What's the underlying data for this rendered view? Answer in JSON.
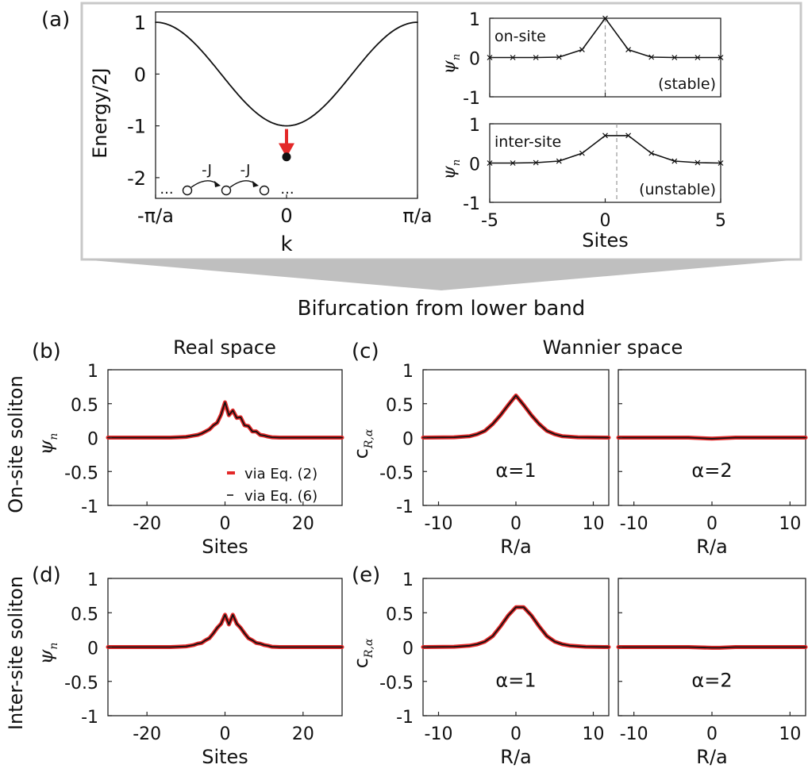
{
  "figure": {
    "panel_labels": [
      "(a)",
      "(b)",
      "(c)",
      "(d)",
      "(e)"
    ],
    "banner": "Bifurcation from lower band",
    "real_space_title": "Real space",
    "wannier_space_title": "Wannier space",
    "row_labels": [
      "On-site soliton",
      "Inter-site soliton"
    ]
  },
  "colors": {
    "curve": "#111111",
    "red": "#e32828",
    "frame": "#c8c8c8",
    "connector": "#bfbfbf"
  },
  "chart_data": [
    {
      "id": "band",
      "type": "line",
      "xlabel": "k",
      "ylabel": "Energy/2J",
      "xticklabels": [
        "-π/a",
        "0",
        "π/a"
      ],
      "ylim": [
        -2.4,
        1.2
      ],
      "yticks": [
        1,
        0,
        -1,
        -2
      ],
      "series": [
        {
          "function": "-cos(k a)",
          "x_range": [
            -3.1416,
            3.1416
          ]
        }
      ],
      "annotations": {
        "arrow": {
          "x": 0,
          "from": -1.0,
          "to": -1.55
        },
        "soliton_point": {
          "x": 0,
          "y": -1.6
        },
        "lattice": {
          "hop_labels": [
            "-J",
            "-J"
          ],
          "ellipsis": "..."
        }
      }
    },
    {
      "id": "onsite_profile",
      "type": "line",
      "label": "on-site",
      "note": "(stable)",
      "ylabel": "ψ_n",
      "xlim": [
        -5,
        5
      ],
      "ylim": [
        -1,
        1
      ],
      "yticks": [
        1,
        0,
        -1
      ],
      "x": [
        -5,
        -4,
        -3,
        -2,
        -1,
        0,
        1,
        2,
        3,
        4,
        5
      ],
      "y": [
        0,
        0,
        0,
        0.01,
        0.2,
        1.0,
        0.2,
        0.01,
        0,
        0,
        0
      ],
      "center_line_x": 0
    },
    {
      "id": "intersite_profile",
      "type": "line",
      "label": "inter-site",
      "note": "(unstable)",
      "ylabel": "ψ_n",
      "xlabel": "Sites",
      "xlim": [
        -5,
        5
      ],
      "ylim": [
        -1,
        1
      ],
      "xticks": [
        -5,
        0,
        5
      ],
      "yticks": [
        1,
        0,
        -1
      ],
      "x": [
        -5,
        -4,
        -3,
        -2,
        -1,
        0,
        1,
        2,
        3,
        4,
        5
      ],
      "y": [
        0,
        0,
        0.01,
        0.05,
        0.25,
        0.7,
        0.7,
        0.25,
        0.05,
        0.01,
        0
      ],
      "center_line_x": 0.5
    },
    {
      "id": "b",
      "type": "line",
      "ylabel": "ψ_n",
      "xlabel": "Sites",
      "xlim": [
        -30,
        30
      ],
      "ylim": [
        -1,
        1
      ],
      "xticks": [
        -20,
        0,
        20
      ],
      "yticks": [
        1,
        0.5,
        0,
        -0.5,
        -1
      ],
      "legend": {
        "position": "inside-bottom-right",
        "entries": [
          "via Eq. (2)",
          "via Eq. (6)"
        ]
      },
      "series": [
        {
          "name": "via Eq. (2)",
          "color": "#e32828",
          "x": [
            -30,
            -14,
            -12,
            -10,
            -9,
            -8,
            -7,
            -6,
            -5,
            -4,
            -3,
            -2,
            -1,
            0,
            1,
            2,
            3,
            4,
            5,
            6,
            7,
            8,
            9,
            10,
            11,
            12,
            14,
            30
          ],
          "y": [
            0,
            0,
            0.005,
            0.01,
            0.02,
            0.03,
            0.04,
            0.06,
            0.09,
            0.12,
            0.18,
            0.22,
            0.34,
            0.52,
            0.33,
            0.4,
            0.29,
            0.3,
            0.18,
            0.17,
            0.09,
            0.09,
            0.04,
            0.03,
            0.015,
            0.005,
            0,
            0
          ]
        },
        {
          "name": "via Eq. (6)",
          "color": "#111111",
          "x": [
            -30,
            -14,
            -12,
            -10,
            -9,
            -8,
            -7,
            -6,
            -5,
            -4,
            -3,
            -2,
            -1,
            0,
            1,
            2,
            3,
            4,
            5,
            6,
            7,
            8,
            9,
            10,
            11,
            12,
            14,
            30
          ],
          "y": [
            0,
            0,
            0.005,
            0.01,
            0.02,
            0.03,
            0.04,
            0.06,
            0.09,
            0.12,
            0.18,
            0.22,
            0.34,
            0.52,
            0.33,
            0.4,
            0.29,
            0.3,
            0.18,
            0.17,
            0.09,
            0.09,
            0.04,
            0.03,
            0.015,
            0.005,
            0,
            0
          ]
        }
      ]
    },
    {
      "id": "c1",
      "type": "line",
      "ylabel": "c_{R,α}",
      "xlabel": "R/a",
      "label": "α=1",
      "xlim": [
        -12,
        12
      ],
      "ylim": [
        -1,
        1
      ],
      "xticks": [
        -10,
        0,
        10
      ],
      "yticks": [
        1,
        0.5,
        0,
        -0.5,
        -1
      ],
      "series": [
        {
          "name": "via Eq. (2)",
          "color": "#e32828",
          "x": [
            -12,
            -8,
            -6,
            -5,
            -4,
            -3,
            -2,
            -1,
            0,
            1,
            2,
            3,
            4,
            5,
            6,
            8,
            12
          ],
          "y": [
            0,
            0.005,
            0.02,
            0.05,
            0.1,
            0.2,
            0.33,
            0.48,
            0.62,
            0.48,
            0.33,
            0.2,
            0.1,
            0.05,
            0.02,
            0.005,
            0
          ]
        },
        {
          "name": "via Eq. (6)",
          "color": "#111111",
          "x": [
            -12,
            -8,
            -6,
            -5,
            -4,
            -3,
            -2,
            -1,
            0,
            1,
            2,
            3,
            4,
            5,
            6,
            8,
            12
          ],
          "y": [
            0,
            0.005,
            0.02,
            0.05,
            0.1,
            0.2,
            0.33,
            0.48,
            0.62,
            0.48,
            0.33,
            0.2,
            0.1,
            0.05,
            0.02,
            0.005,
            0
          ]
        }
      ]
    },
    {
      "id": "c2",
      "type": "line",
      "xlabel": "R/a",
      "label": "α=2",
      "xlim": [
        -12,
        12
      ],
      "ylim": [
        -1,
        1
      ],
      "xticks": [
        -10,
        0,
        10
      ],
      "series": [
        {
          "name": "via Eq. (2)",
          "color": "#e32828",
          "x": [
            -12,
            -3,
            -1,
            0,
            1,
            3,
            12
          ],
          "y": [
            0,
            0,
            -0.01,
            -0.015,
            -0.01,
            0,
            0
          ]
        },
        {
          "name": "via Eq. (6)",
          "color": "#111111",
          "x": [
            -12,
            -3,
            -1,
            0,
            1,
            3,
            12
          ],
          "y": [
            0,
            0,
            -0.01,
            -0.015,
            -0.01,
            0,
            0
          ]
        }
      ]
    },
    {
      "id": "d",
      "type": "line",
      "ylabel": "ψ_n",
      "xlabel": "Sites",
      "xlim": [
        -30,
        30
      ],
      "ylim": [
        -1,
        1
      ],
      "xticks": [
        -20,
        0,
        20
      ],
      "yticks": [
        1,
        0.5,
        0,
        -0.5,
        -1
      ],
      "series": [
        {
          "name": "via Eq. (2)",
          "color": "#e32828",
          "x": [
            -30,
            -14,
            -12,
            -10,
            -9,
            -8,
            -7,
            -6,
            -5,
            -4,
            -3,
            -2,
            -1,
            0,
            1,
            2,
            3,
            4,
            5,
            6,
            7,
            8,
            9,
            10,
            11,
            12,
            14,
            30
          ],
          "y": [
            0,
            0,
            0.005,
            0.01,
            0.02,
            0.03,
            0.05,
            0.06,
            0.1,
            0.13,
            0.2,
            0.28,
            0.34,
            0.47,
            0.33,
            0.47,
            0.34,
            0.28,
            0.2,
            0.13,
            0.1,
            0.06,
            0.05,
            0.03,
            0.02,
            0.005,
            0,
            0
          ]
        },
        {
          "name": "via Eq. (6)",
          "color": "#111111",
          "x": [
            -30,
            -14,
            -12,
            -10,
            -9,
            -8,
            -7,
            -6,
            -5,
            -4,
            -3,
            -2,
            -1,
            0,
            1,
            2,
            3,
            4,
            5,
            6,
            7,
            8,
            9,
            10,
            11,
            12,
            14,
            30
          ],
          "y": [
            0,
            0,
            0.005,
            0.01,
            0.02,
            0.03,
            0.05,
            0.06,
            0.1,
            0.13,
            0.2,
            0.28,
            0.34,
            0.47,
            0.33,
            0.47,
            0.34,
            0.28,
            0.2,
            0.13,
            0.1,
            0.06,
            0.05,
            0.03,
            0.02,
            0.005,
            0,
            0
          ]
        }
      ]
    },
    {
      "id": "e1",
      "type": "line",
      "ylabel": "c_{R,α}",
      "xlabel": "R/a",
      "label": "α=1",
      "xlim": [
        -12,
        12
      ],
      "ylim": [
        -1,
        1
      ],
      "xticks": [
        -10,
        0,
        10
      ],
      "yticks": [
        1,
        0.5,
        0,
        -0.5,
        -1
      ],
      "series": [
        {
          "name": "via Eq. (2)",
          "color": "#e32828",
          "x": [
            -12,
            -8,
            -6,
            -5,
            -4,
            -3,
            -2,
            -1,
            0,
            1,
            2,
            3,
            4,
            5,
            6,
            7,
            9,
            12
          ],
          "y": [
            0,
            0.005,
            0.02,
            0.04,
            0.08,
            0.16,
            0.3,
            0.46,
            0.58,
            0.58,
            0.46,
            0.3,
            0.16,
            0.08,
            0.04,
            0.02,
            0.005,
            0
          ]
        },
        {
          "name": "via Eq. (6)",
          "color": "#111111",
          "x": [
            -12,
            -8,
            -6,
            -5,
            -4,
            -3,
            -2,
            -1,
            0,
            1,
            2,
            3,
            4,
            5,
            6,
            7,
            9,
            12
          ],
          "y": [
            0,
            0.005,
            0.02,
            0.04,
            0.08,
            0.16,
            0.3,
            0.46,
            0.58,
            0.58,
            0.46,
            0.3,
            0.16,
            0.08,
            0.04,
            0.02,
            0.005,
            0
          ]
        }
      ]
    },
    {
      "id": "e2",
      "type": "line",
      "xlabel": "R/a",
      "label": "α=2",
      "xlim": [
        -12,
        12
      ],
      "ylim": [
        -1,
        1
      ],
      "xticks": [
        -10,
        0,
        10
      ],
      "series": [
        {
          "name": "via Eq. (2)",
          "color": "#e32828",
          "x": [
            -12,
            -3,
            0,
            1,
            3,
            12
          ],
          "y": [
            0,
            0,
            -0.01,
            -0.01,
            0,
            0
          ]
        },
        {
          "name": "via Eq. (6)",
          "color": "#111111",
          "x": [
            -12,
            -3,
            0,
            1,
            3,
            12
          ],
          "y": [
            0,
            0,
            -0.01,
            -0.01,
            0,
            0
          ]
        }
      ]
    }
  ]
}
